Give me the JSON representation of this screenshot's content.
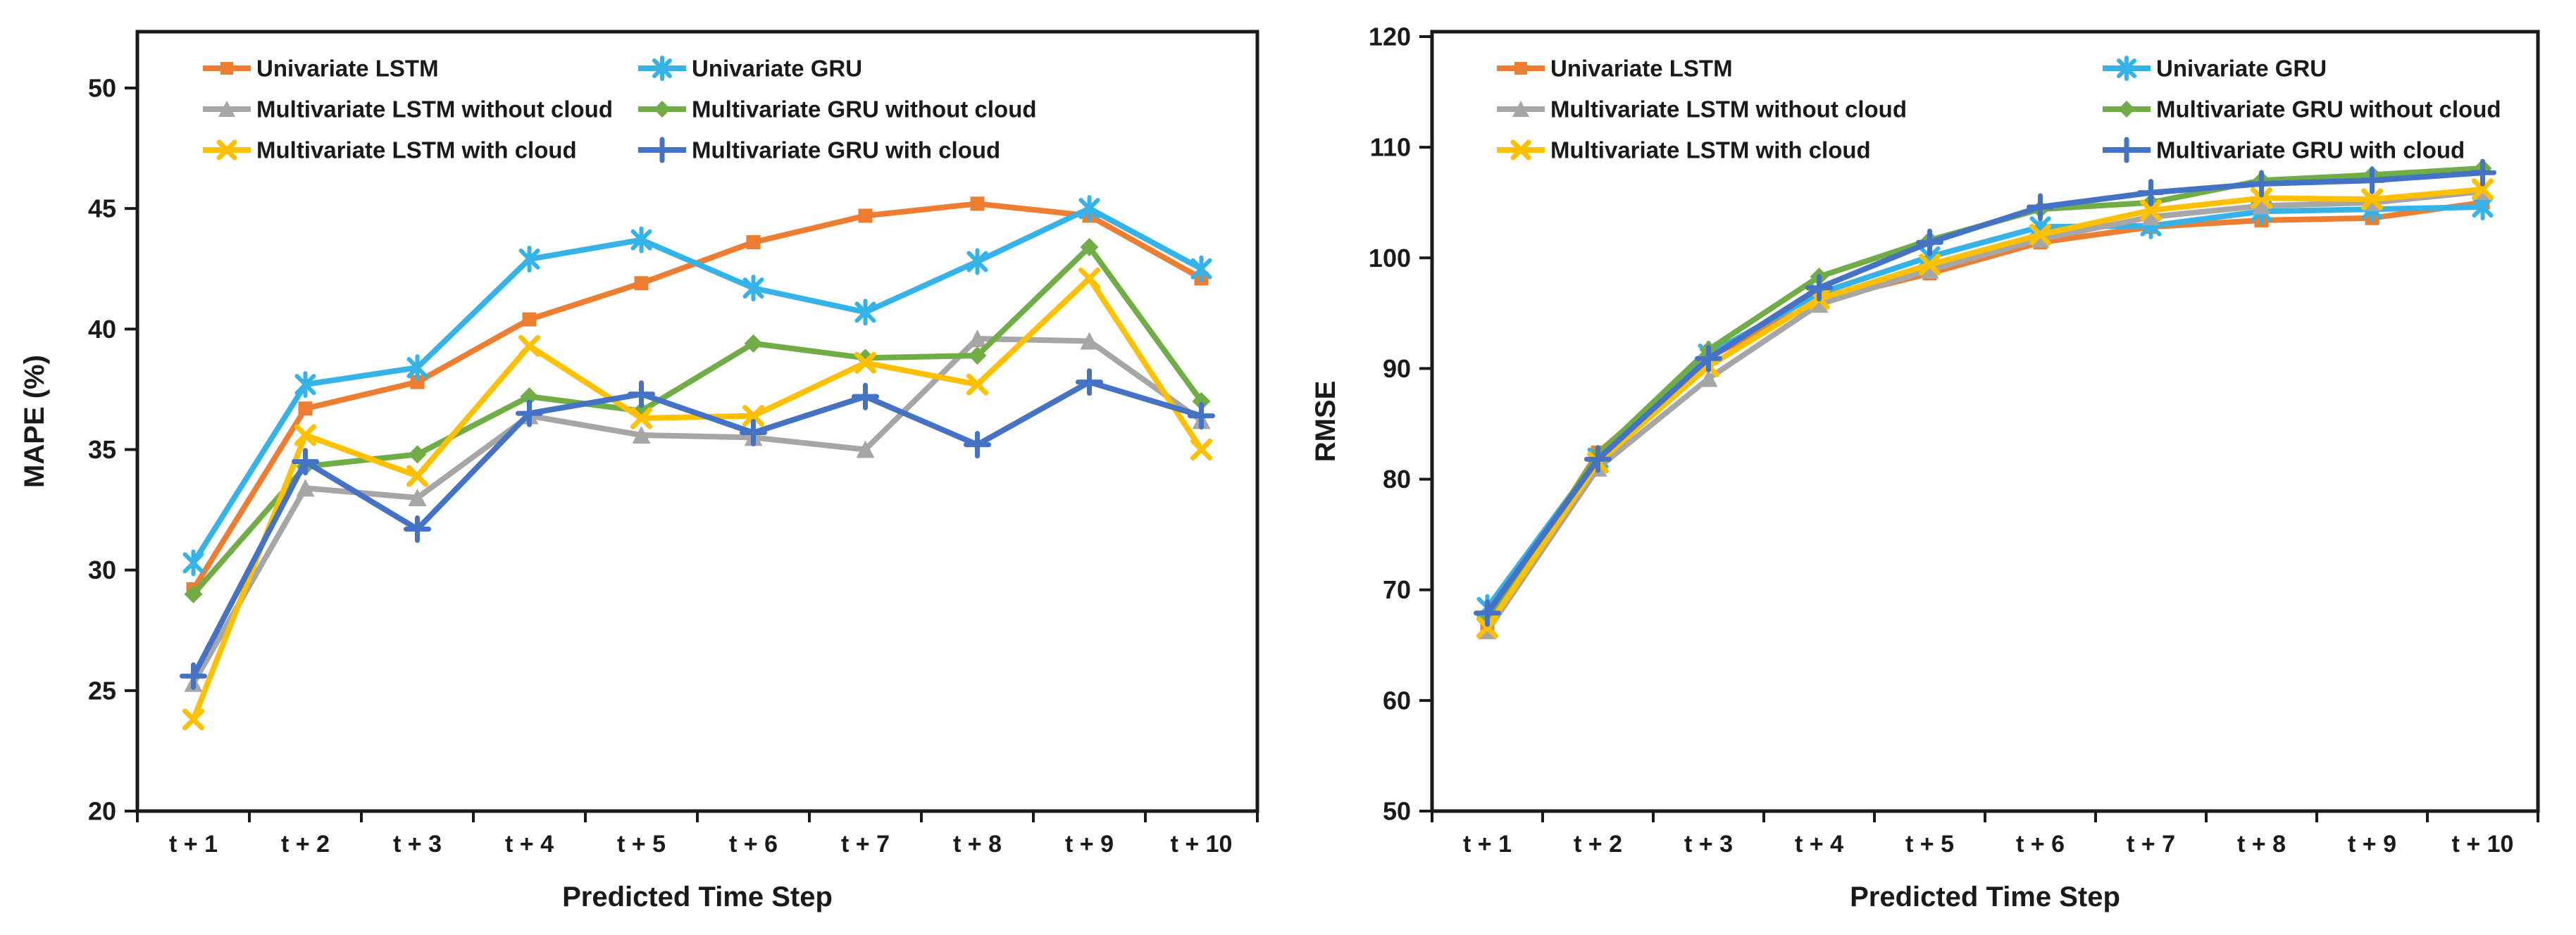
{
  "figure": {
    "background": "#ffffff"
  },
  "chart_data": [
    {
      "type": "line",
      "title": "",
      "xlabel": "Predicted Time Step",
      "ylabel": "MAPE (%)",
      "ylim": [
        20,
        50
      ],
      "yticks": [
        20,
        25,
        30,
        35,
        40,
        45,
        50
      ],
      "grid": false,
      "legend_position": "top-inside",
      "legend_columns": 2,
      "categories": [
        "t + 1",
        "t + 2",
        "t + 3",
        "t + 4",
        "t + 5",
        "t + 6",
        "t + 7",
        "t + 8",
        "t + 9",
        "t + 10"
      ],
      "series": [
        {
          "name": "Univariate LSTM",
          "color": "#ED7D31",
          "marker": "square",
          "values": [
            29.2,
            36.7,
            37.8,
            40.4,
            41.9,
            43.6,
            44.7,
            45.2,
            44.7,
            42.1
          ]
        },
        {
          "name": "Univariate GRU",
          "color": "#35B3E8",
          "marker": "star",
          "values": [
            30.3,
            37.7,
            38.4,
            42.9,
            43.7,
            41.7,
            40.7,
            42.8,
            45.0,
            42.5
          ]
        },
        {
          "name": "Multivariate LSTM without cloud",
          "color": "#A6A6A6",
          "marker": "triangle",
          "values": [
            25.3,
            33.4,
            33.0,
            36.4,
            35.6,
            35.5,
            35.0,
            39.6,
            39.5,
            36.2
          ]
        },
        {
          "name": "Multivariate GRU without cloud",
          "color": "#70AD47",
          "marker": "diamond",
          "values": [
            29.0,
            34.3,
            34.8,
            37.2,
            36.6,
            39.4,
            38.8,
            38.9,
            43.4,
            37.0
          ]
        },
        {
          "name": "Multivariate LSTM with cloud",
          "color": "#FFC000",
          "marker": "x",
          "values": [
            23.8,
            35.6,
            33.9,
            39.3,
            36.3,
            36.4,
            38.6,
            37.7,
            42.1,
            35.0
          ]
        },
        {
          "name": "Multivariate GRU with cloud",
          "color": "#4472C4",
          "marker": "plus",
          "values": [
            25.6,
            34.5,
            31.7,
            36.5,
            37.3,
            35.7,
            37.2,
            35.2,
            37.8,
            36.4
          ]
        }
      ]
    },
    {
      "type": "line",
      "title": "",
      "xlabel": "Predicted Time Step",
      "ylabel": "RMSE",
      "ylim": [
        50,
        120
      ],
      "yticks": [
        50,
        60,
        70,
        80,
        90,
        100,
        110,
        120
      ],
      "grid": false,
      "legend_position": "top-inside",
      "legend_columns": 2,
      "categories": [
        "t + 1",
        "t + 2",
        "t + 3",
        "t + 4",
        "t + 5",
        "t + 6",
        "t + 7",
        "t + 8",
        "t + 9",
        "t + 10"
      ],
      "series": [
        {
          "name": "Univariate LSTM",
          "color": "#ED7D31",
          "marker": "square",
          "values": [
            66.7,
            82.4,
            91.0,
            96.1,
            98.6,
            101.4,
            102.8,
            103.4,
            103.6,
            105.0
          ]
        },
        {
          "name": "Univariate GRU",
          "color": "#35B3E8",
          "marker": "star",
          "values": [
            68.4,
            81.9,
            91.3,
            96.8,
            100.1,
            102.8,
            102.9,
            104.2,
            104.4,
            104.6
          ]
        },
        {
          "name": "Multivariate LSTM without cloud",
          "color": "#A6A6A6",
          "marker": "triangle",
          "values": [
            66.3,
            81.0,
            89.1,
            95.8,
            98.9,
            101.7,
            103.7,
            104.7,
            105.0,
            106.0
          ]
        },
        {
          "name": "Multivariate GRU without cloud",
          "color": "#70AD47",
          "marker": "diamond",
          "values": [
            67.3,
            82.2,
            91.7,
            98.3,
            101.6,
            104.4,
            105.0,
            107.0,
            107.5,
            108.1
          ]
        },
        {
          "name": "Multivariate LSTM with cloud",
          "color": "#FFC000",
          "marker": "x",
          "values": [
            66.6,
            81.5,
            90.2,
            96.3,
            99.4,
            102.1,
            104.3,
            105.4,
            105.3,
            106.2
          ]
        },
        {
          "name": "Multivariate GRU with cloud",
          "color": "#4472C4",
          "marker": "plus",
          "values": [
            67.9,
            81.8,
            90.9,
            97.3,
            101.4,
            104.6,
            105.9,
            106.7,
            107.0,
            107.7
          ]
        }
      ]
    }
  ]
}
